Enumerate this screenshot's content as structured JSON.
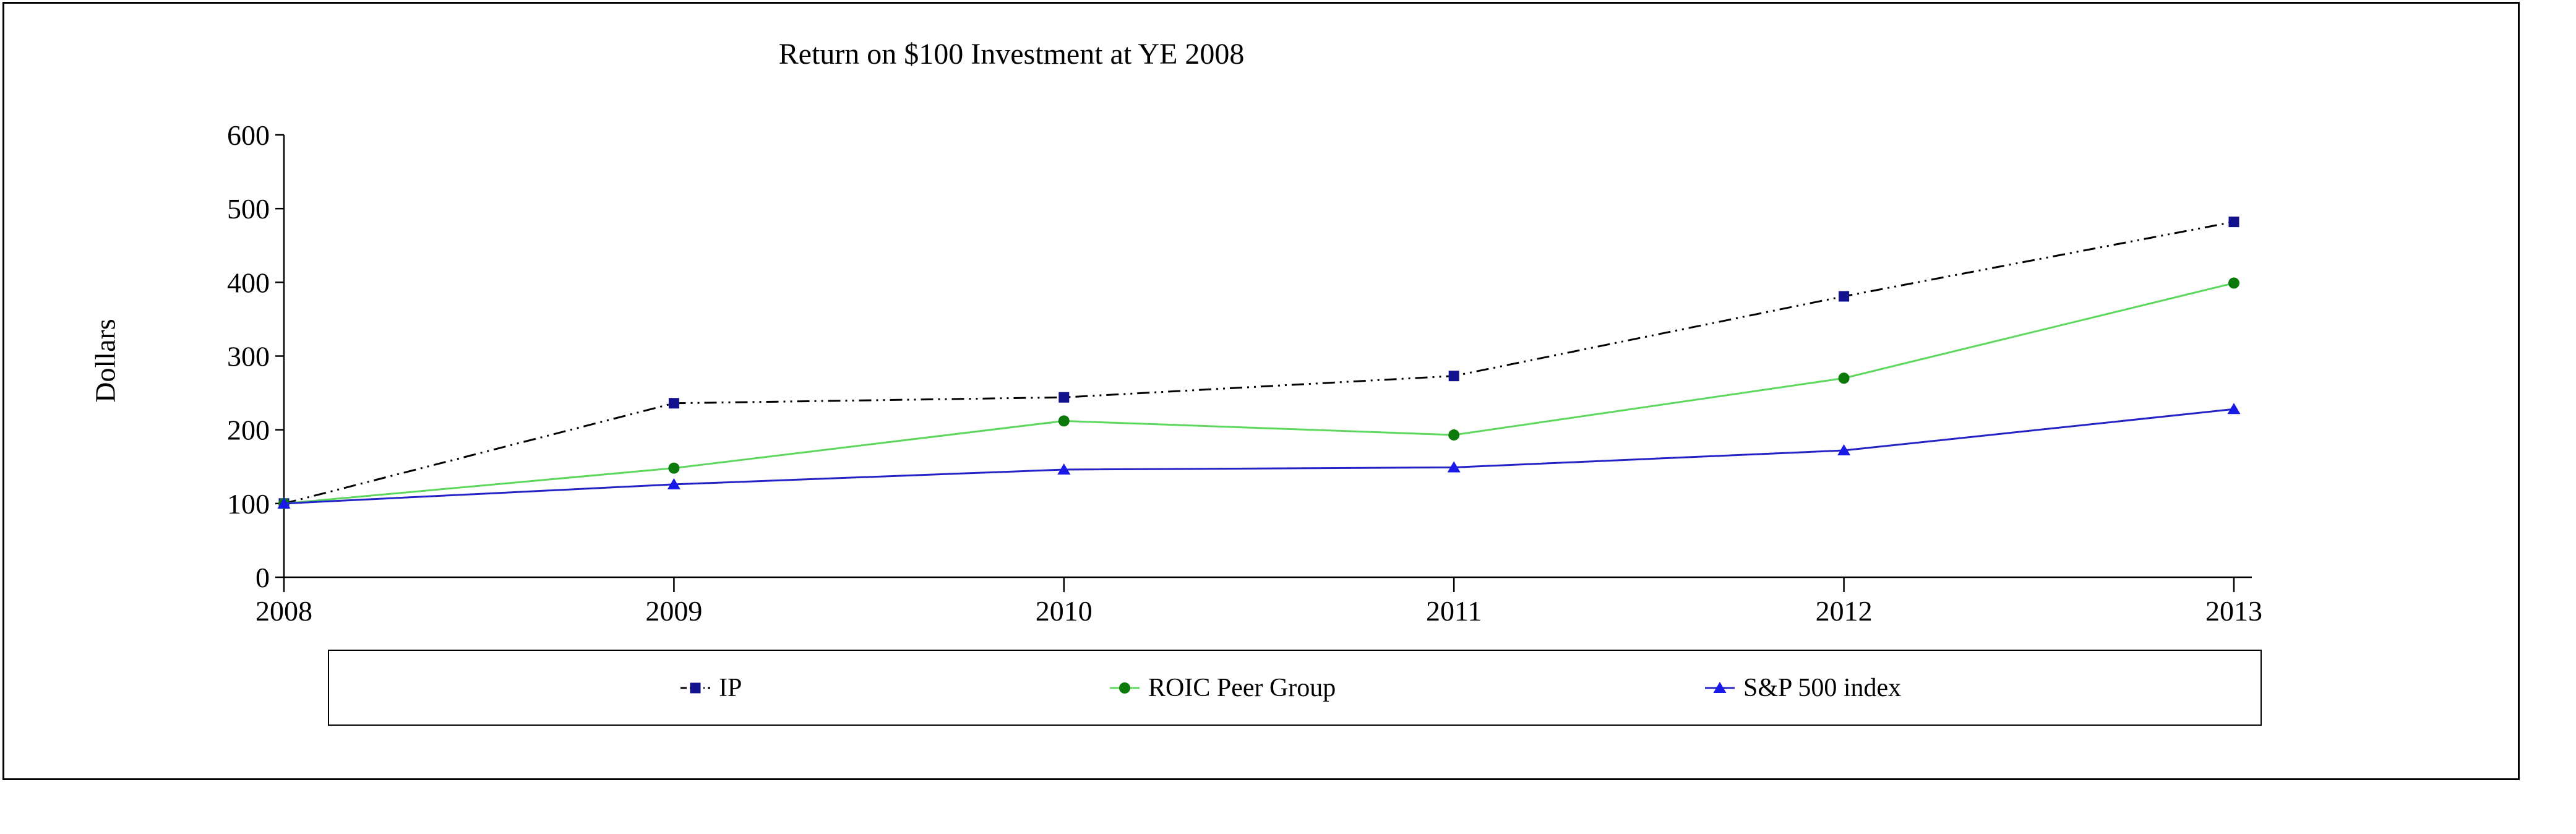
{
  "figure": {
    "title": "Return on $100 Investment at YE 2008",
    "y_axis_title": "Dollars"
  },
  "chart_data": {
    "type": "line",
    "title": "Return on $100 Investment at YE 2008",
    "xlabel": "",
    "ylabel": "Dollars",
    "categories": [
      "2008",
      "2009",
      "2010",
      "2011",
      "2012",
      "2013"
    ],
    "ylim": [
      0,
      600
    ],
    "ytick_step": 100,
    "ytick_labels": [
      "0",
      "100",
      "200",
      "300",
      "400",
      "500",
      "600"
    ],
    "grid": false,
    "legend_position": "bottom-box",
    "axis_color": "#000000",
    "series": [
      {
        "name": "IP",
        "values": [
          100,
          236,
          244,
          273,
          381,
          482
        ],
        "line_color": "#000000",
        "line_style": "dash-dot-dot",
        "marker": "square",
        "marker_color": "#12128F"
      },
      {
        "name": "ROIC Peer Group",
        "values": [
          100,
          148,
          212,
          193,
          270,
          399
        ],
        "line_color": "#5ED75E",
        "line_style": "solid",
        "marker": "circle",
        "marker_color": "#0B7A0B"
      },
      {
        "name": "S&P 500 index",
        "values": [
          100,
          126,
          146,
          149,
          172,
          228
        ],
        "line_color": "#2323C8",
        "line_style": "solid",
        "marker": "triangle",
        "marker_color": "#1A1AE8"
      }
    ]
  }
}
